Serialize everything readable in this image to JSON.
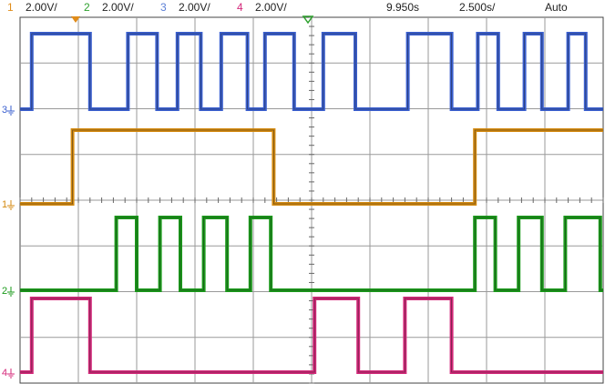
{
  "header": {
    "channels": [
      {
        "num": "1",
        "scale": "2.00V/",
        "color": "#e08c1a"
      },
      {
        "num": "2",
        "scale": "2.00V/",
        "color": "#2ea12e"
      },
      {
        "num": "3",
        "scale": "2.00V/",
        "color": "#5b7fd6"
      },
      {
        "num": "4",
        "scale": "2.00V/",
        "color": "#d4287a"
      }
    ],
    "time_position": "9.950s",
    "time_per_div": "2.500s/",
    "trigger_mode": "Auto"
  },
  "display": {
    "grid_color": "#9a9a9a",
    "divisions_x": 10,
    "divisions_y": 8
  },
  "traces": [
    {
      "channel": "3",
      "marker": "3",
      "color": "#3a5fcf",
      "edges": [
        0.02,
        0.12,
        0.185,
        0.235,
        0.27,
        0.31,
        0.345,
        0.39,
        0.42,
        0.47,
        0.52,
        0.575,
        0.665,
        0.74,
        0.785,
        0.82,
        0.865,
        0.895,
        0.94,
        0.97
      ]
    },
    {
      "channel": "1",
      "marker": "1",
      "color": "#d48a10",
      "edges": [
        0.09,
        0.435,
        0.78
      ]
    },
    {
      "channel": "2",
      "marker": "2",
      "color": "#1a9a1a",
      "edges": [
        0.165,
        0.2,
        0.24,
        0.275,
        0.315,
        0.355,
        0.395,
        0.43,
        0.78,
        0.815,
        0.855,
        0.895,
        0.935,
        0.995
      ]
    },
    {
      "channel": "4",
      "marker": "4",
      "color": "#d4287a",
      "edges": [
        0.02,
        0.12,
        0.505,
        0.58,
        0.66,
        0.74
      ]
    }
  ]
}
